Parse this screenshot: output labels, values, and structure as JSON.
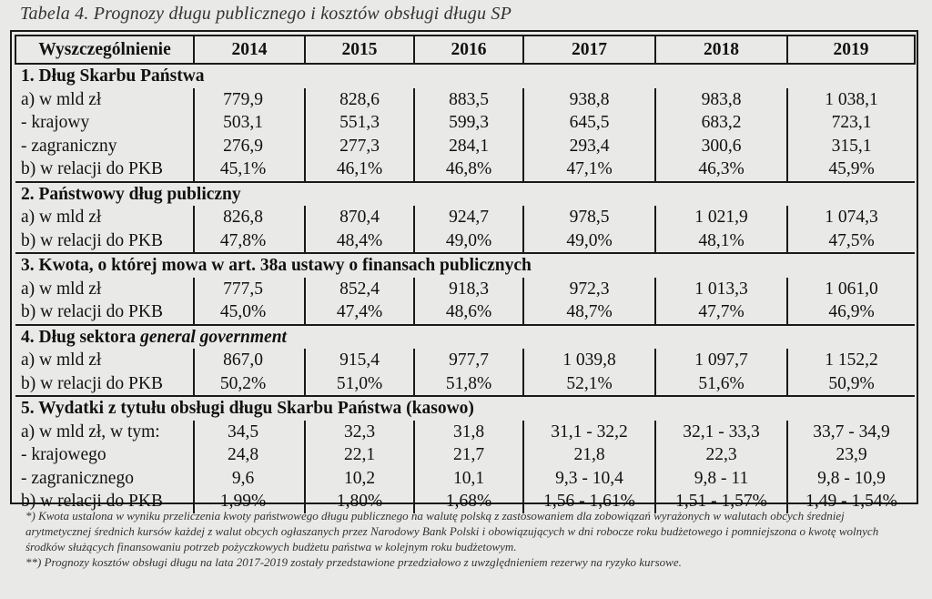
{
  "caption": "Tabela 4. Prognozy długu publicznego i kosztów obsługi długu SP",
  "header": {
    "label": "Wyszczególnienie",
    "years": [
      "2014",
      "2015",
      "2016",
      "2017",
      "2018",
      "2019"
    ]
  },
  "sections": [
    {
      "title": "1. Dług Skarbu Państwa",
      "rows": [
        {
          "label": "a) w mld zł",
          "values": [
            "779,9",
            "828,6",
            "883,5",
            "938,8",
            "983,8",
            "1 038,1"
          ]
        },
        {
          "label": "- krajowy",
          "values": [
            "503,1",
            "551,3",
            "599,3",
            "645,5",
            "683,2",
            "723,1"
          ]
        },
        {
          "label": "- zagraniczny",
          "values": [
            "276,9",
            "277,3",
            "284,1",
            "293,4",
            "300,6",
            "315,1"
          ]
        },
        {
          "label": "b) w relacji do PKB",
          "values": [
            "45,1%",
            "46,1%",
            "46,8%",
            "47,1%",
            "46,3%",
            "45,9%"
          ]
        }
      ]
    },
    {
      "title": "2. Państwowy dług publiczny",
      "rows": [
        {
          "label": "a) w mld zł",
          "values": [
            "826,8",
            "870,4",
            "924,7",
            "978,5",
            "1 021,9",
            "1 074,3"
          ]
        },
        {
          "label": "b) w relacji do PKB",
          "values": [
            "47,8%",
            "48,4%",
            "49,0%",
            "49,0%",
            "48,1%",
            "47,5%"
          ]
        }
      ]
    },
    {
      "title": "3. Kwota, o której mowa w art. 38a ustawy o finansach publicznych",
      "rows": [
        {
          "label": "a) w mld zł",
          "values": [
            "777,5",
            "852,4",
            "918,3",
            "972,3",
            "1 013,3",
            "1 061,0"
          ]
        },
        {
          "label": "b) w relacji do PKB",
          "values": [
            "45,0%",
            "47,4%",
            "48,6%",
            "48,7%",
            "47,7%",
            "46,9%"
          ]
        }
      ]
    },
    {
      "title": "4. Dług sektora ",
      "title_italic": "general government",
      "rows": [
        {
          "label": "a) w mld zł",
          "values": [
            "867,0",
            "915,4",
            "977,7",
            "1 039,8",
            "1 097,7",
            "1 152,2"
          ]
        },
        {
          "label": "b) w relacji do PKB",
          "values": [
            "50,2%",
            "51,0%",
            "51,8%",
            "52,1%",
            "51,6%",
            "50,9%"
          ]
        }
      ]
    },
    {
      "title": "5. Wydatki z tytułu obsługi długu Skarbu Państwa (kasowo)",
      "rows": [
        {
          "label": "a) w mld zł, w tym:",
          "values": [
            "34,5",
            "32,3",
            "31,8",
            "31,1 - 32,2",
            "32,1 - 33,3",
            "33,7 - 34,9"
          ]
        },
        {
          "label": "- krajowego",
          "values": [
            "24,8",
            "22,1",
            "21,7",
            "21,8",
            "22,3",
            "23,9"
          ]
        },
        {
          "label": "- zagranicznego",
          "values": [
            "9,6",
            "10,2",
            "10,1",
            "9,3 - 10,4",
            "9,8 - 11",
            "9,8 - 10,9"
          ]
        },
        {
          "label": "b) w relacji do PKB",
          "values": [
            "1,99%",
            "1,80%",
            "1,68%",
            "1,56 - 1,61%",
            "1,51 - 1,57%",
            "1,49 - 1,54%"
          ]
        }
      ]
    }
  ],
  "footnotes": [
    "*) Kwota ustalona w wyniku przeliczenia kwoty państwowego długu publicznego na walutę polską z zastosowaniem dla zobowiązań wyrażonych w walutach obcych średniej arytmetycznej średnich kursów każdej z walut obcych ogłaszanych przez Narodowy Bank Polski i obowiązujących w dni robocze roku budżetowego i pomniejszona o kwotę wolnych środków służących finansowaniu potrzeb pożyczkowych budżetu państwa w kolejnym roku budżetowym.",
    "**) Prognozy kosztów obsługi długu na lata 2017-2019 zostały przedstawione przedziałowo z uwzględnieniem rezerwy na ryzyko kursowe."
  ]
}
